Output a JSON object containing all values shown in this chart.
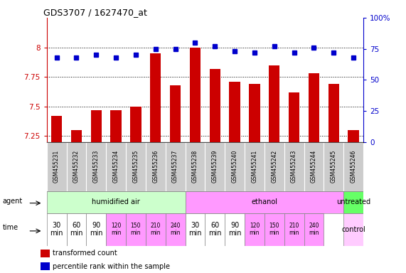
{
  "title": "GDS3707 / 1627470_at",
  "samples": [
    "GSM455231",
    "GSM455232",
    "GSM455233",
    "GSM455234",
    "GSM455235",
    "GSM455236",
    "GSM455237",
    "GSM455238",
    "GSM455239",
    "GSM455240",
    "GSM455241",
    "GSM455242",
    "GSM455243",
    "GSM455244",
    "GSM455245",
    "GSM455246"
  ],
  "bar_values": [
    7.42,
    7.3,
    7.47,
    7.47,
    7.5,
    7.95,
    7.68,
    8.0,
    7.82,
    7.71,
    7.69,
    7.85,
    7.62,
    7.78,
    7.69,
    7.3
  ],
  "dot_values": [
    68,
    68,
    70,
    68,
    70,
    75,
    75,
    80,
    77,
    73,
    72,
    77,
    72,
    76,
    72,
    68
  ],
  "ylim_left": [
    7.2,
    8.25
  ],
  "ylim_right": [
    0,
    100
  ],
  "yticks_left": [
    7.25,
    7.5,
    7.75,
    8.0
  ],
  "ytick_labels_left": [
    "7.25",
    "7.5",
    "7.75",
    "8"
  ],
  "yticks_right": [
    0,
    25,
    50,
    75,
    100
  ],
  "ytick_labels_right": [
    "0",
    "25",
    "50",
    "75",
    "100%"
  ],
  "bar_color": "#cc0000",
  "dot_color": "#0000cc",
  "bar_bottom": 7.2,
  "agent_groups": [
    {
      "label": "humidified air",
      "start": 0,
      "end": 7,
      "color": "#ccffcc"
    },
    {
      "label": "ethanol",
      "start": 7,
      "end": 15,
      "color": "#ff99ff"
    },
    {
      "label": "untreated",
      "start": 15,
      "end": 16,
      "color": "#66ff66"
    }
  ],
  "time_labels": [
    "30\nmin",
    "60\nmin",
    "90\nmin",
    "120\nmin",
    "150\nmin",
    "210\nmin",
    "240\nmin",
    "30\nmin",
    "60\nmin",
    "90\nmin",
    "120\nmin",
    "150\nmin",
    "210\nmin",
    "240\nmin"
  ],
  "time_cell_colors": [
    "#ffffff",
    "#ffffff",
    "#ffffff",
    "#ff99ff",
    "#ff99ff",
    "#ff99ff",
    "#ff99ff",
    "#ffffff",
    "#ffffff",
    "#ffffff",
    "#ff99ff",
    "#ff99ff",
    "#ff99ff",
    "#ff99ff"
  ],
  "control_label": "control",
  "control_color": "#ffccff",
  "legend_bar_label": "transformed count",
  "legend_dot_label": "percentile rank within the sample",
  "grid_color": "#888888",
  "bg_color": "#ffffff",
  "sample_bg": "#cccccc"
}
